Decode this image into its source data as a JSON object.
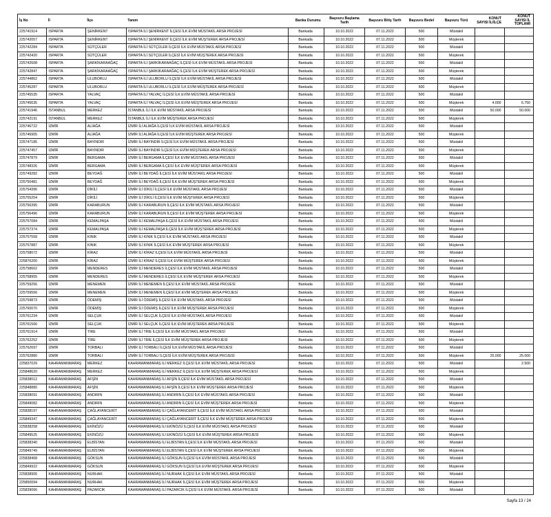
{
  "columns": [
    {
      "key": "isno",
      "label": "İş No",
      "class": "c-isno"
    },
    {
      "key": "il",
      "label": "İl",
      "class": "c-il"
    },
    {
      "key": "ilce",
      "label": "İlçe",
      "class": "c-ilce"
    },
    {
      "key": "tanim",
      "label": "Tanım",
      "class": "c-tanim"
    },
    {
      "key": "banka",
      "label": "Banka Durumu",
      "class": "c-banka"
    },
    {
      "key": "t1",
      "label": "Başvuru Başlama Tarih",
      "class": "c-tarih1"
    },
    {
      "key": "t2",
      "label": "Başvuru Bitiş Tarih",
      "class": "c-tarih2"
    },
    {
      "key": "bedel",
      "label": "Başvuru Bedel",
      "class": "c-bedel"
    },
    {
      "key": "tur",
      "label": "Başvuru Türü",
      "class": "c-tur"
    },
    {
      "key": "k1",
      "label": "KONUT SAYISI İL/İLÇE",
      "class": "c-sayi1"
    },
    {
      "key": "k2",
      "label": "KONUT SAYISI İL TOPLAMI",
      "class": "c-sayi2"
    }
  ],
  "rows": [
    {
      "isno": "225741914",
      "il": "ISPARTA",
      "ilce": "ŞENİRKENT",
      "tanim": "ISPARTA İLİ ŞENİRKENT İLÇESİ İLK EVİM MÜSTAKİL ARSA PROJESİ",
      "banka": "Bankada",
      "t1": "10.10.2022",
      "t2": "07.11.2022",
      "bedel": "500",
      "tur": "Müstakil"
    },
    {
      "isno": "225742057",
      "il": "ISPARTA",
      "ilce": "ŞENİRKENT",
      "tanim": "ISPARTA İLİ ŞENİRKENT İLÇESİ İLK EVİM MÜŞTEREK ARSA PROJESİ",
      "banka": "Bankada",
      "t1": "10.10.2022",
      "t2": "07.11.2022",
      "bedel": "500",
      "tur": "Müşterek"
    },
    {
      "isno": "225742284",
      "il": "ISPARTA",
      "ilce": "SÜTÇÜLER",
      "tanim": "ISPARTA İLİ SÜTÇÜLER İLÇESİ İLK EVİM MÜSTAKİL ARSA PROJESİ",
      "banka": "Bankada",
      "t1": "10.10.2022",
      "t2": "07.11.2022",
      "bedel": "500",
      "tur": "Müstakil"
    },
    {
      "isno": "225742420",
      "il": "ISPARTA",
      "ilce": "SÜTÇÜLER",
      "tanim": "ISPARTA İLİ SÜTÇÜLER İLÇESİ İLK EVİM MÜŞTEREK ARSA PROJESİ",
      "banka": "Bankada",
      "t1": "10.10.2022",
      "t2": "07.11.2022",
      "bedel": "500",
      "tur": "Müşterek"
    },
    {
      "isno": "225742608",
      "il": "ISPARTA",
      "ilce": "ŞARKİKARAAĞAÇ",
      "tanim": "ISPARTA İLİ ŞARKİKARAAĞAÇ İLÇESİ İLK EVİM MÜSTAKİL ARSA PROJESİ",
      "banka": "Bankada",
      "t1": "10.10.2022",
      "t2": "07.11.2022",
      "bedel": "500",
      "tur": "Müstakil"
    },
    {
      "isno": "225742847",
      "il": "ISPARTA",
      "ilce": "ŞARKİKARAAĞAÇ",
      "tanim": "ISPARTA İLİ ŞARKİKARAAĞAÇ İLÇESİ İLK EVİM MÜŞTEREK ARSA PROJESİ",
      "banka": "Bankada",
      "t1": "10.10.2022",
      "t2": "07.11.2022",
      "bedel": "500",
      "tur": "Müşterek"
    },
    {
      "isno": "225744862",
      "il": "ISPARTA",
      "ilce": "ULUBORLU",
      "tanim": "ISPARTA İLİ ULUBORLU İLÇESİ İLK EVİM MÜSTAKİL ARSA PROJESİ",
      "banka": "Bankada",
      "t1": "10.10.2022",
      "t2": "07.11.2022",
      "bedel": "500",
      "tur": "Müstakil"
    },
    {
      "isno": "225745287",
      "il": "ISPARTA",
      "ilce": "ULUBORLU",
      "tanim": "ISPARTA İLİ ULUBORLU İLÇESİ İLK EVİM MÜŞTEREK ARSA PROJESİ",
      "banka": "Bankada",
      "t1": "10.10.2022",
      "t2": "07.11.2022",
      "bedel": "500",
      "tur": "Müşterek"
    },
    {
      "isno": "225745535",
      "il": "ISPARTA",
      "ilce": "YALVAÇ",
      "tanim": "ISPARTA İLİ YALVAÇ İLÇESİ İLK EVİM MÜSTAKİL ARSA PROJESİ",
      "banka": "Bankada",
      "t1": "10.10.2022",
      "t2": "07.11.2022",
      "bedel": "500",
      "tur": "Müstakil"
    },
    {
      "isno": "225745635",
      "il": "ISPARTA",
      "ilce": "YALVAÇ",
      "tanim": "ISPARTA İLİ YALVAÇ İLÇESİ İLK EVİM MÜŞTEREK ARSA PROJESİ",
      "banka": "Bankada",
      "t1": "10.10.2022",
      "t2": "07.11.2022",
      "bedel": "500",
      "tur": "Müşterek",
      "k1": "4.000",
      "k2": "6.750"
    },
    {
      "isno": "225741946",
      "il": "İSTANBUL",
      "ilce": "MERKEZ",
      "tanim": "İSTANBUL İLİ İLK EVİM MÜSTAKİL ARSA PROJESİ",
      "banka": "Bankada",
      "t1": "10.10.2022",
      "t2": "07.11.2022",
      "bedel": "500",
      "tur": "Müstakil",
      "k1": "50.000",
      "k2": "50.000"
    },
    {
      "isno": "225742191",
      "il": "İSTANBUL",
      "ilce": "MERKEZ",
      "tanim": "İSTANBUL İLİ İLK EVİM MÜŞTEREK ARSA PROJESİ",
      "banka": "Bankada",
      "t1": "10.10.2022",
      "t2": "07.11.2022",
      "bedel": "500",
      "tur": "Müşterek"
    },
    {
      "isno": "225746722",
      "il": "İZMİR",
      "ilce": "ALİAĞA",
      "tanim": "İZMİR İLİ ALİAĞA İLÇESİ İLK EVİM MÜSTAKİL ARSA PROJESİ",
      "banka": "Bankada",
      "t1": "10.10.2022",
      "t2": "07.11.2022",
      "bedel": "500",
      "tur": "Müstakil"
    },
    {
      "isno": "225746905",
      "il": "İZMİR",
      "ilce": "ALİAĞA",
      "tanim": "İZMİR İLİ ALİAĞA İLÇESİ İLK EVİM MÜŞTEREK ARSA PROJESİ",
      "banka": "Bankada",
      "t1": "10.10.2022",
      "t2": "07.11.2022",
      "bedel": "500",
      "tur": "Müşterek"
    },
    {
      "isno": "225747185",
      "il": "İZMİR",
      "ilce": "BAYINDIR",
      "tanim": "İZMİR İLİ BAYINDIR İLÇESİ İLK EVİM MÜSTAKİL ARSA PROJESİ",
      "banka": "Bankada",
      "t1": "10.10.2022",
      "t2": "07.11.2022",
      "bedel": "500",
      "tur": "Müstakil"
    },
    {
      "isno": "225747457",
      "il": "İZMİR",
      "ilce": "BAYINDIR",
      "tanim": "İZMİR İLİ BAYINDIR İLÇESİ İLK EVİM MÜŞTEREK ARSA PROJESİ",
      "banka": "Bankada",
      "t1": "10.10.2022",
      "t2": "07.11.2022",
      "bedel": "500",
      "tur": "Müşterek"
    },
    {
      "isno": "225747879",
      "il": "İZMİR",
      "ilce": "BERGAMA",
      "tanim": "İZMİR İLİ BERGAMA İLÇESİ İLK EVİM MÜSTAKİL ARSA PROJESİ",
      "banka": "Bankada",
      "t1": "10.10.2022",
      "t2": "07.11.2022",
      "bedel": "500",
      "tur": "Müstakil"
    },
    {
      "isno": "225748326",
      "il": "İZMİR",
      "ilce": "BERGAMA",
      "tanim": "İZMİR İLİ BERGAMA İLÇESİ İLK EVİM MÜŞTEREK ARSA PROJESİ",
      "banka": "Bankada",
      "t1": "10.10.2022",
      "t2": "07.11.2022",
      "bedel": "500",
      "tur": "Müşterek"
    },
    {
      "isno": "225749282",
      "il": "İZMİR",
      "ilce": "BEYDAĞ",
      "tanim": "İZMİR İLİ BEYDAĞ İLÇESİ İLK EVİM MÜSTAKİL ARSA PROJESİ",
      "banka": "Bankada",
      "t1": "10.10.2022",
      "t2": "07.11.2022",
      "bedel": "500",
      "tur": "Müstakil"
    },
    {
      "isno": "225750481",
      "il": "İZMİR",
      "ilce": "BEYDAĞ",
      "tanim": "İZMİR İLİ BEYDAĞ İLÇESİ İLK EVİM MÜŞTEREK ARSA PROJESİ",
      "banka": "Bankada",
      "t1": "10.10.2022",
      "t2": "07.11.2022",
      "bedel": "500",
      "tur": "Müşterek"
    },
    {
      "isno": "225754396",
      "il": "İZMİR",
      "ilce": "DİKİLİ",
      "tanim": "İZMİR İLİ DİKİLİ İLÇESİ İLK EVİM MÜSTAKİL ARSA PROJESİ",
      "banka": "Bankada",
      "t1": "10.10.2022",
      "t2": "07.11.2022",
      "bedel": "500",
      "tur": "Müstakil"
    },
    {
      "isno": "225755254",
      "il": "İZMİR",
      "ilce": "DİKİLİ",
      "tanim": "İZMİR İLİ DİKİLİ İLÇESİ İLK EVİM MÜŞTEREK ARSA PROJESİ",
      "banka": "Bankada",
      "t1": "10.10.2022",
      "t2": "07.11.2022",
      "bedel": "500",
      "tur": "Müşterek"
    },
    {
      "isno": "225756395",
      "il": "İZMİR",
      "ilce": "KARABURUN",
      "tanim": "İZMİR İLİ KARABURUN İLÇESİ İLK EVİM MÜSTAKİL ARSA PROJESİ",
      "banka": "Bankada",
      "t1": "10.10.2022",
      "t2": "07.11.2022",
      "bedel": "500",
      "tur": "Müstakil"
    },
    {
      "isno": "225756496",
      "il": "İZMİR",
      "ilce": "KARABURUN",
      "tanim": "İZMİR İLİ KARABURUN İLÇESİ İLK EVİM MÜŞTEREK ARSA PROJESİ",
      "banka": "Bankada",
      "t1": "10.10.2022",
      "t2": "07.11.2022",
      "bedel": "500",
      "tur": "Müşterek"
    },
    {
      "isno": "225757084",
      "il": "İZMİR",
      "ilce": "KEMALPAŞA",
      "tanim": "İZMİR İLİ KEMALPAŞA İLÇESİ İLK EVİM MÜSTAKİL ARSA PROJESİ",
      "banka": "Bankada",
      "t1": "10.10.2022",
      "t2": "07.11.2022",
      "bedel": "500",
      "tur": "Müstakil"
    },
    {
      "isno": "225757374",
      "il": "İZMİR",
      "ilce": "KEMALPAŞA",
      "tanim": "İZMİR İLİ KEMALPAŞA İLÇESİ İLK EVİM MÜŞTEREK ARSA PROJESİ",
      "banka": "Bankada",
      "t1": "10.10.2022",
      "t2": "07.11.2022",
      "bedel": "500",
      "tur": "Müşterek"
    },
    {
      "isno": "225757558",
      "il": "İZMİR",
      "ilce": "KINIK",
      "tanim": "İZMİR İLİ KINIK İLÇESİ İLK EVİM MÜSTAKİL ARSA PROJESİ",
      "banka": "Bankada",
      "t1": "10.10.2022",
      "t2": "07.11.2022",
      "bedel": "500",
      "tur": "Müstakil"
    },
    {
      "isno": "225757887",
      "il": "İZMİR",
      "ilce": "KINIK",
      "tanim": "İZMİR İLİ KINIK İLÇESİ İLK EVİM MÜŞTEREK ARSA PROJESİ",
      "banka": "Bankada",
      "t1": "10.10.2022",
      "t2": "07.11.2022",
      "bedel": "500",
      "tur": "Müşterek"
    },
    {
      "isno": "225758072",
      "il": "İZMİR",
      "ilce": "KİRAZ",
      "tanim": "İZMİR İLİ KİRAZ İLÇESİ İLK EVİM MÜSTAKİL ARSA PROJESİ",
      "banka": "Bankada",
      "t1": "10.10.2022",
      "t2": "07.11.2022",
      "bedel": "500",
      "tur": "Müstakil"
    },
    {
      "isno": "225876200",
      "il": "İZMİR",
      "ilce": "KİRAZ",
      "tanim": "İZMİR İLİ KİRAZ İLÇESİ İLK EVİM MÜŞTEREK ARSA PROJESİ",
      "banka": "Bankada",
      "t1": "10.10.2022",
      "t2": "07.11.2022",
      "bedel": "500",
      "tur": "Müşterek"
    },
    {
      "isno": "225758662",
      "il": "İZMİR",
      "ilce": "MENDERES",
      "tanim": "İZMİR İLİ MENDERES İLÇESİ İLK EVİM MÜSTAKİL ARSA PROJESİ",
      "banka": "Bankada",
      "t1": "10.10.2022",
      "t2": "07.11.2022",
      "bedel": "500",
      "tur": "Müstakil"
    },
    {
      "isno": "225758955",
      "il": "İZMİR",
      "ilce": "MENDERES",
      "tanim": "İZMİR İLİ MENDERES İLÇESİ İLK EVİM MÜŞTEREK ARSA PROJESİ",
      "banka": "Bankada",
      "t1": "10.10.2022",
      "t2": "07.11.2022",
      "bedel": "500",
      "tur": "Müşterek"
    },
    {
      "isno": "225759256",
      "il": "İZMİR",
      "ilce": "MENEMEN",
      "tanim": "İZMİR İLİ MENEMEN İLÇESİ İLK EVİM MÜSTAKİL ARSA PROJESİ",
      "banka": "Bankada",
      "t1": "10.10.2022",
      "t2": "07.11.2022",
      "bedel": "500",
      "tur": "Müstakil"
    },
    {
      "isno": "225759556",
      "il": "İZMİR",
      "ilce": "MENEMEN",
      "tanim": "İZMİR İLİ MENEMEN İLÇESİ İLK EVİM MÜŞTEREK ARSA PROJESİ",
      "banka": "Bankada",
      "t1": "10.10.2022",
      "t2": "07.11.2022",
      "bedel": "500",
      "tur": "Müşterek"
    },
    {
      "isno": "225759873",
      "il": "İZMİR",
      "ilce": "ÖDEMİŞ",
      "tanim": "İZMİR İLİ ÖDEMİŞ İLÇESİ İLK EVİM MÜSTAKİL ARSA PROJESİ",
      "banka": "Bankada",
      "t1": "10.10.2022",
      "t2": "07.11.2022",
      "bedel": "500",
      "tur": "Müstakil"
    },
    {
      "isno": "225760070",
      "il": "İZMİR",
      "ilce": "ÖDEMİŞ",
      "tanim": "İZMİR İLİ ÖDEMİŞ İLÇESİ İLK EVİM MÜŞTEREK ARSA PROJESİ",
      "banka": "Bankada",
      "t1": "10.10.2022",
      "t2": "07.11.2022",
      "bedel": "500",
      "tur": "Müşterek"
    },
    {
      "isno": "225761234",
      "il": "İZMİR",
      "ilce": "SELÇUK",
      "tanim": "İZMİR İLİ SELÇUK İLÇESİ İLK EVİM MÜSTAKİL ARSA PROJESİ",
      "banka": "Bankada",
      "t1": "10.10.2022",
      "t2": "07.11.2022",
      "bedel": "500",
      "tur": "Müstakil"
    },
    {
      "isno": "225761566",
      "il": "İZMİR",
      "ilce": "SELÇUK",
      "tanim": "İZMİR İLİ SELÇUK İLÇESİ İLK EVİM MÜŞTEREK ARSA PROJESİ",
      "banka": "Bankada",
      "t1": "10.10.2022",
      "t2": "07.11.2022",
      "bedel": "500",
      "tur": "Müşterek"
    },
    {
      "isno": "225761914",
      "il": "İZMİR",
      "ilce": "TİRE",
      "tanim": "İZMİR İLİ TİRE İLÇESİ İLK EVİM MÜSTAKİL ARSA PROJESİ",
      "banka": "Bankada",
      "t1": "10.10.2022",
      "t2": "07.11.2022",
      "bedel": "500",
      "tur": "Müstakil"
    },
    {
      "isno": "225762252",
      "il": "İZMİR",
      "ilce": "TİRE",
      "tanim": "İZMİR İLİ TİRE İLÇESİ İLK EVİM MÜŞTEREK ARSA PROJESİ",
      "banka": "Bankada",
      "t1": "10.10.2022",
      "t2": "07.11.2022",
      "bedel": "500",
      "tur": "Müşterek"
    },
    {
      "isno": "225762697",
      "il": "İZMİR",
      "ilce": "TORBALI",
      "tanim": "İZMİR İLİ TORBALI İLÇESİ İLK EVİM MÜSTAKİL ARSA PROJESİ",
      "banka": "Bankada",
      "t1": "10.10.2022",
      "t2": "07.11.2022",
      "bedel": "500",
      "tur": "Müstakil"
    },
    {
      "isno": "225762880",
      "il": "İZMİR",
      "ilce": "TORBALI",
      "tanim": "İZMİR İLİ TORBALI İLÇESİ İLK EVİM MÜŞTEREK ARSA PROJESİ",
      "banka": "Bankada",
      "t1": "10.10.2022",
      "t2": "07.11.2022",
      "bedel": "500",
      "tur": "Müşterek",
      "k1": "25.000",
      "k2": "25.000"
    },
    {
      "isno": "225837029",
      "il": "KAHRAMANMARAŞ",
      "ilce": "MERKEZ",
      "tanim": "KAHRAMANMARAŞ İLİ MERKEZ İLÇESİ İLK EVİM MÜSTAKİL ARSA PROJESİ",
      "banka": "Bankada",
      "t1": "10.10.2022",
      "t2": "07.11.2022",
      "bedel": "500",
      "tur": "Müstakil",
      "k2": "2.500"
    },
    {
      "isno": "225848620",
      "il": "KAHRAMANMARAŞ",
      "ilce": "MERKEZ",
      "tanim": "KAHRAMANMARAŞ İLİ MERKEZ İLÇESİ İLK EVİM MÜŞTEREK ARSA PROJESİ",
      "banka": "Bankada",
      "t1": "10.10.2022",
      "t2": "07.11.2022",
      "bedel": "500",
      "tur": "Müşterek"
    },
    {
      "isno": "225838012",
      "il": "KAHRAMANMARAŞ",
      "ilce": "AFŞİN",
      "tanim": "KAHRAMANMARAŞ İLİ AFŞİN İLÇESİ İLK EVİM MÜSTAKİL ARSA PROJESİ",
      "banka": "Bankada",
      "t1": "10.10.2022",
      "t2": "07.11.2022",
      "bedel": "500",
      "tur": "Müstakil"
    },
    {
      "isno": "225848880",
      "il": "KAHRAMANMARAŞ",
      "ilce": "AFŞİN",
      "tanim": "KAHRAMANMARAŞ İLİ AFŞİN İLÇESİ İLK EVİM MÜŞTEREK ARSA PROJESİ",
      "banka": "Bankada",
      "t1": "10.10.2022",
      "t2": "07.11.2022",
      "bedel": "500",
      "tur": "Müşterek"
    },
    {
      "isno": "225838091",
      "il": "KAHRAMANMARAŞ",
      "ilce": "ANDIRIN",
      "tanim": "KAHRAMANMARAŞ İLİ ANDIRIN İLÇESİ İLK EVİM MÜSTAKİL ARSA PROJESİ",
      "banka": "Bankada",
      "t1": "10.10.2022",
      "t2": "07.11.2022",
      "bedel": "500",
      "tur": "Müstakil"
    },
    {
      "isno": "225849082",
      "il": "KAHRAMANMARAŞ",
      "ilce": "ANDIRIN",
      "tanim": "KAHRAMANMARAŞ İLİ ANDIRIN İLÇESİ İLK EVİM MÜŞTEREK ARSA PROJESİ",
      "banka": "Bankada",
      "t1": "10.10.2022",
      "t2": "07.11.2022",
      "bedel": "500",
      "tur": "Müşterek"
    },
    {
      "isno": "225838197",
      "il": "KAHRAMANMARAŞ",
      "ilce": "ÇAĞLAYANCERİT",
      "tanim": "KAHRAMANMARAŞ İLİ ÇAĞLAYANCERİT İLÇESİ İLK EVİM MÜSTAKİL ARSA PROJESİ",
      "banka": "Bankada",
      "t1": "10.10.2022",
      "t2": "07.11.2022",
      "bedel": "500",
      "tur": "Müstakil"
    },
    {
      "isno": "225849347",
      "il": "KAHRAMANMARAŞ",
      "ilce": "ÇAĞLAYANCERİT",
      "tanim": "KAHRAMANMARAŞ İLİ ÇAĞLAYANCERİT İLÇESİ İLK EVİM MÜŞTEREK ARSA PROJESİ",
      "banka": "Bankada",
      "t1": "10.10.2022",
      "t2": "07.11.2022",
      "bedel": "500",
      "tur": "Müşterek"
    },
    {
      "isno": "225838258",
      "il": "KAHRAMANMARAŞ",
      "ilce": "EKİNÖZÜ",
      "tanim": "KAHRAMANMARAŞ İLİ EKİNÖZÜ İLÇESİ İLK EVİM MÜSTAKİL ARSA PROJESİ",
      "banka": "Bankada",
      "t1": "10.10.2022",
      "t2": "07.11.2022",
      "bedel": "500",
      "tur": "Müstakil"
    },
    {
      "isno": "225849525",
      "il": "KAHRAMANMARAŞ",
      "ilce": "EKİNÖZÜ",
      "tanim": "KAHRAMANMARAŞ İLİ EKİNÖZÜ İLÇESİ İLK EVİM MÜŞTEREK ARSA PROJESİ",
      "banka": "Bankada",
      "t1": "10.10.2022",
      "t2": "07.11.2022",
      "bedel": "500",
      "tur": "Müşterek"
    },
    {
      "isno": "225838340",
      "il": "KAHRAMANMARAŞ",
      "ilce": "ELBİSTAN",
      "tanim": "KAHRAMANMARAŞ İLİ ELBİSTAN İLÇESİ İLK EVİM MÜSTAKİL ARSA PROJESİ",
      "banka": "Bankada",
      "t1": "10.10.2022",
      "t2": "07.11.2022",
      "bedel": "500",
      "tur": "Müstakil"
    },
    {
      "isno": "225849749",
      "il": "KAHRAMANMARAŞ",
      "ilce": "ELBİSTAN",
      "tanim": "KAHRAMANMARAŞ İLİ ELBİSTAN İLÇESİ İLK EVİM MÜŞTEREK ARSA PROJESİ",
      "banka": "Bankada",
      "t1": "10.10.2022",
      "t2": "07.11.2022",
      "bedel": "500",
      "tur": "Müşterek"
    },
    {
      "isno": "225838468",
      "il": "KAHRAMANMARAŞ",
      "ilce": "GÖKSUN",
      "tanim": "KAHRAMANMARAŞ İLİ GÖKSUN İLÇESİ İLK EVİM MÜSTAKİL ARSA PROJESİ",
      "banka": "Bankada",
      "t1": "10.10.2022",
      "t2": "07.11.2022",
      "bedel": "500",
      "tur": "Müstakil"
    },
    {
      "isno": "225849922",
      "il": "KAHRAMANMARAŞ",
      "ilce": "GÖKSUN",
      "tanim": "KAHRAMANMARAŞ İLİ GÖKSUN İLÇESİ İLK EVİM MÜŞTEREK ARSA PROJESİ",
      "banka": "Bankada",
      "t1": "10.10.2022",
      "t2": "07.11.2022",
      "bedel": "500",
      "tur": "Müşterek"
    },
    {
      "isno": "225838905",
      "il": "KAHRAMANMARAŞ",
      "ilce": "NURHAK",
      "tanim": "KAHRAMANMARAŞ İLİ NURHAK İLÇESİ İLK EVİM MÜSTAKİL ARSA PROJESİ",
      "banka": "Bankada",
      "t1": "10.10.2022",
      "t2": "07.11.2022",
      "bedel": "500",
      "tur": "Müstakil"
    },
    {
      "isno": "225850094",
      "il": "KAHRAMANMARAŞ",
      "ilce": "NURHAK",
      "tanim": "KAHRAMANMARAŞ İLİ NURHAK İLÇESİ İLK EVİM MÜŞTEREK ARSA PROJESİ",
      "banka": "Bankada",
      "t1": "10.10.2022",
      "t2": "07.11.2022",
      "bedel": "500",
      "tur": "Müşterek"
    },
    {
      "isno": "225839066",
      "il": "KAHRAMANMARAŞ",
      "ilce": "PAZARCIK",
      "tanim": "KAHRAMANMARAŞ İLİ PAZARCIK İLÇESİ İLK EVİM MÜSTAKİL ARSA PROJESİ",
      "banka": "Bankada",
      "t1": "10.10.2022",
      "t2": "07.11.2022",
      "bedel": "500",
      "tur": "Müstakil"
    }
  ],
  "footer": "Sayfa 13 / 24"
}
